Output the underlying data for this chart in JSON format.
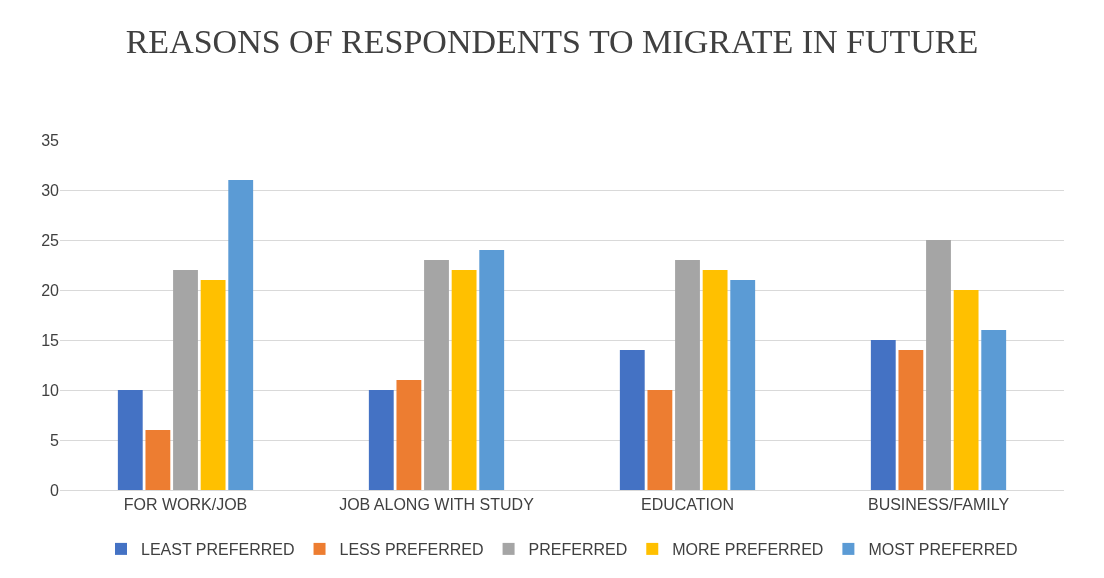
{
  "chart_data": {
    "type": "bar",
    "title": "REASONS OF RESPONDENTS TO MIGRATE IN FUTURE",
    "categories": [
      "FOR WORK/JOB",
      "JOB ALONG WITH STUDY",
      "EDUCATION",
      "BUSINESS/FAMILY"
    ],
    "series": [
      {
        "name": "LEAST PREFERRED",
        "color": "#4472c4",
        "values": [
          10,
          10,
          14,
          15
        ]
      },
      {
        "name": "LESS PREFERRED",
        "color": "#ed7d31",
        "values": [
          6,
          11,
          10,
          14
        ]
      },
      {
        "name": "PREFERRED",
        "color": "#a5a5a5",
        "values": [
          22,
          23,
          23,
          25
        ]
      },
      {
        "name": "MORE PREFERRED",
        "color": "#ffc000",
        "values": [
          21,
          22,
          22,
          20
        ]
      },
      {
        "name": "MOST PREFERRED",
        "color": "#5b9bd5",
        "values": [
          31,
          24,
          21,
          16
        ]
      }
    ],
    "ylim": [
      0,
      35
    ],
    "yticks": [
      0,
      5,
      10,
      15,
      20,
      25,
      30,
      35
    ],
    "grid": "y",
    "legend": "bottom"
  }
}
